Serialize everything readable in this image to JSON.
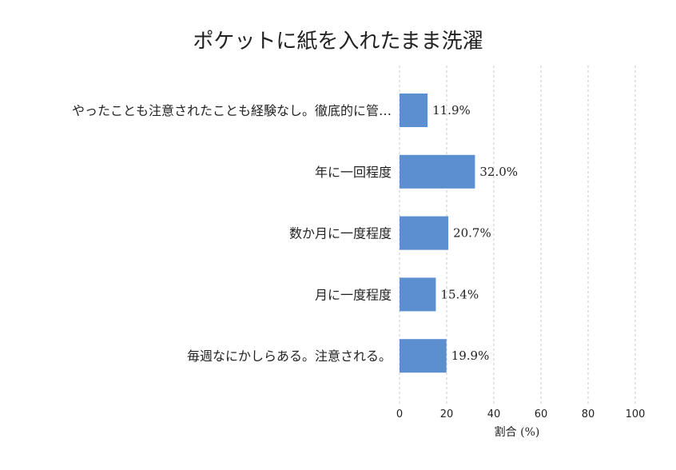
{
  "chart_data": {
    "type": "bar",
    "orientation": "horizontal",
    "title": "ポケットに紙を入れたまま洗濯",
    "xlabel": "割合 (%)",
    "ylabel": "",
    "xlim": [
      0,
      100
    ],
    "xticks": [
      0,
      20,
      40,
      60,
      80,
      100
    ],
    "grid": true,
    "categories": [
      "やったことも注意されたことも経験なし。徹底的に管…",
      "年に一回程度",
      "数か月に一度程度",
      "月に一度程度",
      "毎週なにかしらある。注意される。"
    ],
    "values": [
      11.9,
      32.0,
      20.7,
      15.4,
      19.9
    ],
    "value_labels": [
      "11.9%",
      "32.0%",
      "20.7%",
      "15.4%",
      "19.9%"
    ],
    "bar_color": "#5b8fd0"
  }
}
